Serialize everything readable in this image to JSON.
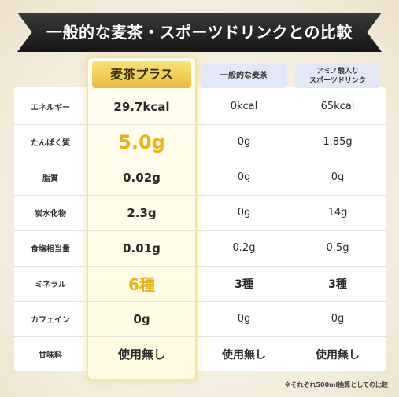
{
  "title": "一般的な麦茶・スポーツドリンクとの比較",
  "columns": {
    "highlight": "麦茶プラス",
    "col2": "一般的な麦茶",
    "col3_line1": "アミノ酸入り",
    "col3_line2": "スポーツドリンク"
  },
  "rows": [
    {
      "label": "エネルギー",
      "c1": "29.7kcal",
      "c2": "0kcal",
      "c3": "65kcal"
    },
    {
      "label": "たんぱく質",
      "c1": "5.0g",
      "c2": "0g",
      "c3": "1.85g"
    },
    {
      "label": "脂質",
      "c1": "0.02g",
      "c2": "0g",
      "c3": "0g"
    },
    {
      "label": "炭水化物",
      "c1": "2.3g",
      "c2": "0g",
      "c3": "14g"
    },
    {
      "label": "食塩相当量",
      "c1": "0.01g",
      "c2": "0.2g",
      "c3": "0.5g"
    },
    {
      "label": "ミネラル",
      "c1": "6種",
      "c2": "3種",
      "c3": "3種"
    },
    {
      "label": "カフェイン",
      "c1": "0g",
      "c2": "0g",
      "c3": "0g"
    },
    {
      "label": "甘味料",
      "c1": "使用無し",
      "c2": "使用無し",
      "c3": "使用無し"
    }
  ],
  "footnote": "※それぞれ500ml換算としての比較",
  "colors": {
    "accent_gold": "#e6b320",
    "banner_bg": "#1f1f1f",
    "header_blue": "#e4e7f6"
  }
}
